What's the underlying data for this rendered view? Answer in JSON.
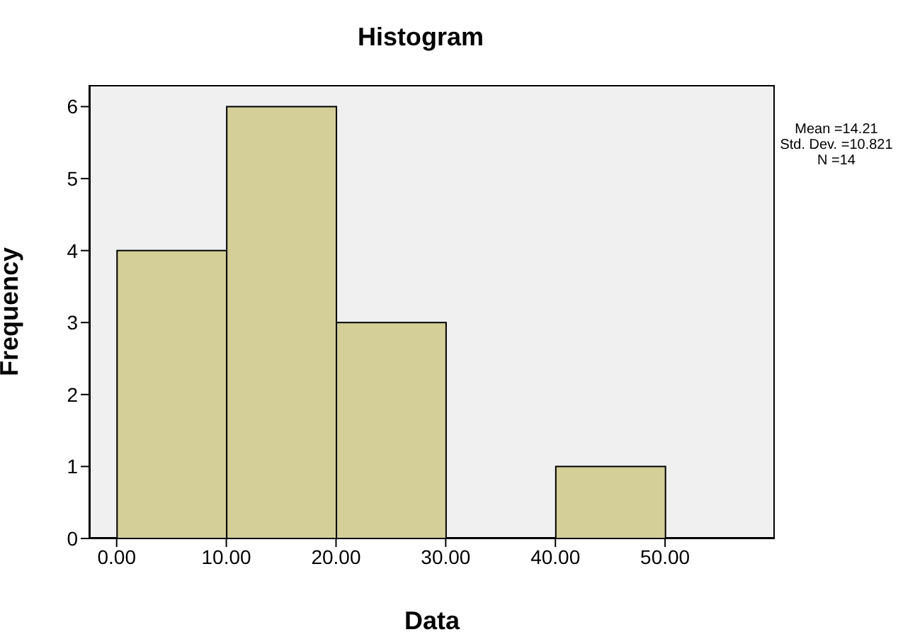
{
  "chart_data": {
    "type": "histogram",
    "title": "Histogram",
    "xlabel": "Data",
    "ylabel": "Frequency",
    "bins": [
      0,
      10,
      20,
      30,
      40,
      50
    ],
    "values": [
      4,
      6,
      3,
      0,
      1
    ],
    "color": "#d4cf99",
    "xlim": [
      -2.5,
      60
    ],
    "ylim": [
      0,
      6.3
    ],
    "xticks": [
      {
        "value": 0,
        "label": "0.00"
      },
      {
        "value": 10,
        "label": "10.00"
      },
      {
        "value": 20,
        "label": "20.00"
      },
      {
        "value": 30,
        "label": "30.00"
      },
      {
        "value": 40,
        "label": "40.00"
      },
      {
        "value": 50,
        "label": "50.00"
      }
    ],
    "yticks": [
      0,
      1,
      2,
      3,
      4,
      5,
      6
    ],
    "annotations": [
      "Mean =14.21",
      "Std. Dev. =10.821",
      "N =14"
    ]
  }
}
